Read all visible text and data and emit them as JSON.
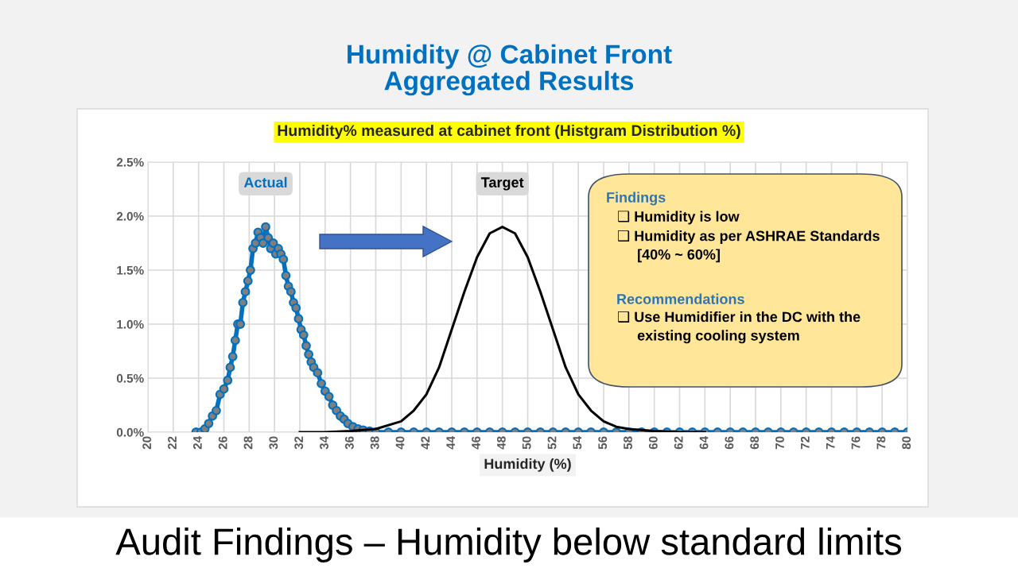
{
  "chart_data": {
    "type": "line",
    "title": "Humidity @ Cabinet Front\nAggregated Results",
    "subtitle": "Humidity% measured at cabinet front (Histgram Distribution %)",
    "xlabel": "Humidity (%)",
    "xlim": [
      20,
      80
    ],
    "xticks": [
      20,
      22,
      24,
      26,
      28,
      30,
      32,
      34,
      36,
      38,
      40,
      42,
      44,
      46,
      48,
      50,
      52,
      54,
      56,
      58,
      60,
      62,
      64,
      66,
      68,
      70,
      72,
      74,
      76,
      78,
      80
    ],
    "ylim": [
      0,
      2.5
    ],
    "yticks": [
      {
        "value": 0,
        "label": "0.0%"
      },
      {
        "value": 0.5,
        "label": "0.5%"
      },
      {
        "value": 1.0,
        "label": "1.0%"
      },
      {
        "value": 1.5,
        "label": "1.5%"
      },
      {
        "value": 2.0,
        "label": "2.0%"
      },
      {
        "value": 2.5,
        "label": "2.5%"
      }
    ],
    "grid": true,
    "legend": false,
    "series": [
      {
        "name": "Actual",
        "color": "#0070c0",
        "marker": "circle",
        "x": [
          23.8,
          24.2,
          24.5,
          24.8,
          25.1,
          25.4,
          25.7,
          26.0,
          26.3,
          26.5,
          26.7,
          26.9,
          27.1,
          27.3,
          27.5,
          27.7,
          27.9,
          28.1,
          28.3,
          28.5,
          28.7,
          28.9,
          29.1,
          29.3,
          29.5,
          29.7,
          29.9,
          30.1,
          30.3,
          30.5,
          30.7,
          30.9,
          31.1,
          31.3,
          31.5,
          31.7,
          31.9,
          32.1,
          32.3,
          32.5,
          32.7,
          32.9,
          33.1,
          33.4,
          33.7,
          34.0,
          34.3,
          34.6,
          34.9,
          35.2,
          35.5,
          35.8,
          36.2,
          36.6,
          37.0,
          37.5,
          38.0,
          39,
          40,
          41,
          42,
          43,
          44,
          45,
          46,
          47,
          48,
          49,
          50,
          51,
          52,
          53,
          54,
          55,
          56,
          57,
          58,
          59,
          60,
          61,
          62,
          63,
          64,
          65,
          66,
          67,
          68,
          69,
          70,
          71,
          72,
          73,
          74,
          75,
          76,
          77,
          78,
          79,
          80
        ],
        "values": [
          0,
          0,
          0.03,
          0.08,
          0.15,
          0.2,
          0.35,
          0.4,
          0.48,
          0.6,
          0.7,
          0.85,
          1.0,
          1.0,
          1.2,
          1.3,
          1.4,
          1.5,
          1.7,
          1.75,
          1.85,
          1.8,
          1.75,
          1.9,
          1.8,
          1.7,
          1.75,
          1.65,
          1.7,
          1.65,
          1.6,
          1.45,
          1.35,
          1.3,
          1.2,
          1.15,
          1.05,
          0.95,
          0.9,
          0.8,
          0.72,
          0.65,
          0.6,
          0.55,
          0.45,
          0.38,
          0.33,
          0.25,
          0.2,
          0.15,
          0.12,
          0.08,
          0.05,
          0.03,
          0.02,
          0.01,
          0,
          0,
          0,
          0,
          0,
          0,
          0,
          0,
          0,
          0,
          0,
          0,
          0,
          0,
          0,
          0,
          0,
          0,
          0,
          0,
          0,
          0,
          0,
          0,
          0,
          0,
          0,
          0,
          0,
          0,
          0,
          0,
          0,
          0,
          0,
          0,
          0,
          0,
          0,
          0,
          0,
          0,
          0
        ]
      },
      {
        "name": "Target",
        "color": "#000000",
        "marker": "none",
        "x": [
          32,
          34,
          36,
          38,
          40,
          41,
          42,
          43,
          44,
          45,
          46,
          47,
          48,
          49,
          50,
          51,
          52,
          53,
          54,
          55,
          56,
          57,
          58,
          60,
          62,
          64
        ],
        "values": [
          0,
          0,
          0.01,
          0.03,
          0.1,
          0.2,
          0.35,
          0.6,
          0.95,
          1.3,
          1.62,
          1.84,
          1.9,
          1.84,
          1.62,
          1.3,
          0.95,
          0.6,
          0.35,
          0.2,
          0.1,
          0.05,
          0.03,
          0.01,
          0,
          0
        ]
      }
    ],
    "annotations": [
      "Findings",
      "❑ Humidity is low",
      "❑ Humidity as per ASHRAE Standards\n     [40% ~ 60%]",
      "Recommendations",
      "❑ Use Humidifier in the DC with the\n     existing cooling system",
      "Audit Findings – Humidity below standard limits"
    ]
  }
}
